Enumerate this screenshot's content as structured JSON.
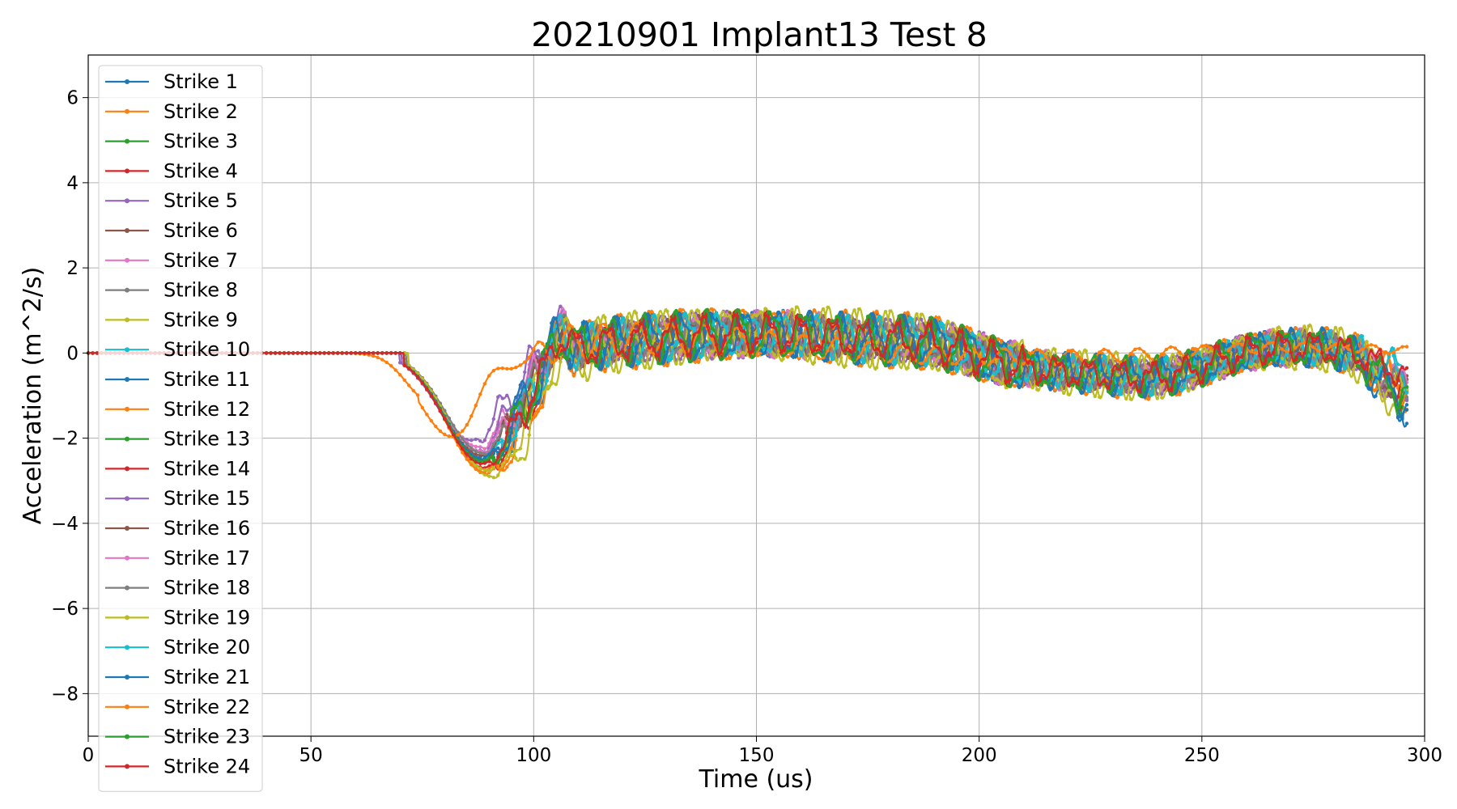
{
  "chart_data": {
    "type": "line",
    "title": "20210901 Implant13 Test 8",
    "xlabel": "Time (us)",
    "ylabel": "Acceleration (m^2/s)",
    "xlim": [
      0,
      300
    ],
    "ylim": [
      -9,
      7
    ],
    "xticks": [
      0,
      50,
      100,
      150,
      200,
      250,
      300
    ],
    "yticks": [
      -8,
      -6,
      -4,
      -2,
      0,
      2,
      4,
      6
    ],
    "xtick_labels": [
      "0",
      "50",
      "100",
      "150",
      "200",
      "250",
      "300"
    ],
    "ytick_labels": [
      "−8",
      "−6",
      "−4",
      "−2",
      "0",
      "2",
      "4",
      "6"
    ],
    "grid": true,
    "legend_position": "upper-left",
    "markers": true,
    "series": [
      {
        "name": "Strike 1",
        "color": "#1f77b4",
        "onset": 71.0,
        "min": -2.55,
        "min_t": 89.0,
        "end": -1.3,
        "phase": 0.0,
        "late_amp": 0.5
      },
      {
        "name": "Strike 2",
        "color": "#ff7f0e",
        "onset": 72.0,
        "min": -2.85,
        "min_t": 89.5,
        "end": -0.9,
        "phase": 0.6,
        "late_amp": 0.55
      },
      {
        "name": "Strike 3",
        "color": "#2ca02c",
        "onset": 71.5,
        "min": -2.6,
        "min_t": 88.5,
        "end": -1.1,
        "phase": 1.2,
        "late_amp": 0.5
      },
      {
        "name": "Strike 4",
        "color": "#d62728",
        "onset": 71.0,
        "min": -2.7,
        "min_t": 89.0,
        "end": -1.0,
        "phase": 1.8,
        "late_amp": 0.45
      },
      {
        "name": "Strike 5",
        "color": "#9467bd",
        "onset": 70.0,
        "min": -2.05,
        "min_t": 86.0,
        "end": -1.0,
        "phase": 2.4,
        "late_amp": 0.45
      },
      {
        "name": "Strike 6",
        "color": "#8c564b",
        "onset": 71.0,
        "min": -2.4,
        "min_t": 88.0,
        "end": -0.9,
        "phase": 3.0,
        "late_amp": 0.4
      },
      {
        "name": "Strike 7",
        "color": "#e377c2",
        "onset": 71.0,
        "min": -2.2,
        "min_t": 87.5,
        "end": -0.8,
        "phase": 3.6,
        "late_amp": 0.45
      },
      {
        "name": "Strike 8",
        "color": "#7f7f7f",
        "onset": 71.5,
        "min": -2.3,
        "min_t": 88.0,
        "end": -0.9,
        "phase": 4.2,
        "late_amp": 0.4
      },
      {
        "name": "Strike 9",
        "color": "#bcbd22",
        "onset": 72.0,
        "min": -2.9,
        "min_t": 90.5,
        "end": -1.2,
        "phase": 4.8,
        "late_amp": 0.6
      },
      {
        "name": "Strike 10",
        "color": "#17becf",
        "onset": 71.0,
        "min": -2.5,
        "min_t": 88.5,
        "end": -0.4,
        "phase": 5.4,
        "late_amp": 0.45
      },
      {
        "name": "Strike 11",
        "color": "#1f77b4",
        "onset": 71.0,
        "min": -2.45,
        "min_t": 88.0,
        "end": -1.2,
        "phase": 0.3,
        "late_amp": 0.5
      },
      {
        "name": "Strike 12",
        "color": "#ff7f0e",
        "onset": 71.5,
        "min": -2.8,
        "min_t": 89.0,
        "end": -0.7,
        "phase": 0.9,
        "late_amp": 0.55
      },
      {
        "name": "Strike 13",
        "color": "#2ca02c",
        "onset": 71.0,
        "min": -2.5,
        "min_t": 88.5,
        "end": -1.0,
        "phase": 1.5,
        "late_amp": 0.5
      },
      {
        "name": "Strike 14",
        "color": "#d62728",
        "onset": 71.0,
        "min": -2.6,
        "min_t": 88.5,
        "end": -0.8,
        "phase": 2.1,
        "late_amp": 0.45
      },
      {
        "name": "Strike 15",
        "color": "#9467bd",
        "onset": 70.5,
        "min": -2.3,
        "min_t": 87.0,
        "end": -0.9,
        "phase": 2.7,
        "late_amp": 0.45
      },
      {
        "name": "Strike 16",
        "color": "#8c564b",
        "onset": 71.0,
        "min": -2.4,
        "min_t": 88.0,
        "end": -0.9,
        "phase": 3.3,
        "late_amp": 0.4
      },
      {
        "name": "Strike 17",
        "color": "#e377c2",
        "onset": 71.0,
        "min": -2.3,
        "min_t": 88.0,
        "end": -0.7,
        "phase": 3.9,
        "late_amp": 0.45
      },
      {
        "name": "Strike 18",
        "color": "#7f7f7f",
        "onset": 71.5,
        "min": -2.35,
        "min_t": 88.5,
        "end": -0.8,
        "phase": 4.5,
        "late_amp": 0.4
      },
      {
        "name": "Strike 19",
        "color": "#bcbd22",
        "onset": 72.0,
        "min": -2.75,
        "min_t": 89.5,
        "end": -1.0,
        "phase": 5.1,
        "late_amp": 0.55
      },
      {
        "name": "Strike 20",
        "color": "#17becf",
        "onset": 71.0,
        "min": -2.5,
        "min_t": 88.5,
        "end": -0.5,
        "phase": 5.7,
        "late_amp": 0.45
      },
      {
        "name": "Strike 21",
        "color": "#1f77b4",
        "onset": 71.0,
        "min": -2.5,
        "min_t": 88.5,
        "end": -1.1,
        "phase": 0.45,
        "late_amp": 0.5
      },
      {
        "name": "Strike 22",
        "color": "#ff7f0e",
        "onset": 60.0,
        "min": -1.25,
        "min_t": 76.0,
        "end": -0.05,
        "phase": 1.05,
        "late_amp": 0.35,
        "shape": "early"
      },
      {
        "name": "Strike 23",
        "color": "#2ca02c",
        "onset": 71.0,
        "min": -2.55,
        "min_t": 88.5,
        "end": -0.9,
        "phase": 1.65,
        "late_amp": 0.5
      },
      {
        "name": "Strike 24",
        "color": "#d62728",
        "onset": 71.0,
        "min": -2.6,
        "min_t": 88.5,
        "end": -0.5,
        "phase": 2.25,
        "late_amp": 0.35
      }
    ]
  }
}
